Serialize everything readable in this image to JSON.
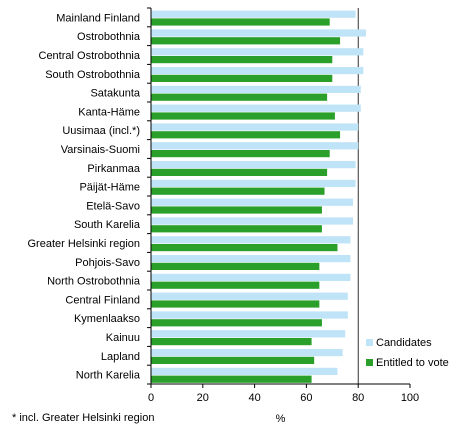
{
  "chart_data": {
    "type": "bar",
    "orientation": "horizontal",
    "categories": [
      "Mainland Finland",
      "Ostrobothnia",
      "Central Ostrobothnia",
      "South Ostrobothnia",
      "Satakunta",
      "Kanta-Häme",
      "Uusimaa (incl.*)",
      "Varsinais-Suomi",
      "Pirkanmaa",
      "Päijät-Häme",
      "Etelä-Savo",
      "South Karelia",
      "Greater Helsinki region",
      "Pohjois-Savo",
      "North Ostrobothnia",
      "Central Finland",
      "Kymenlaakso",
      "Kainuu",
      "Lapland",
      "North Karelia"
    ],
    "series": [
      {
        "name": "Candidates",
        "color": "#bfe3f7",
        "values": [
          79,
          83,
          82,
          82,
          81,
          81,
          80,
          80,
          79,
          79,
          78,
          78,
          77,
          77,
          77,
          76,
          76,
          75,
          74,
          72
        ]
      },
      {
        "name": "Entitled to vote",
        "color": "#2aa02a",
        "values": [
          69,
          73,
          70,
          70,
          68,
          71,
          73,
          69,
          68,
          67,
          66,
          66,
          72,
          65,
          65,
          65,
          66,
          62,
          63,
          62
        ]
      }
    ],
    "xlim": [
      0,
      100
    ],
    "xticks": [
      "0",
      "20",
      "40",
      "60",
      "80",
      "100"
    ],
    "xlabel": "%",
    "grid": "vertical at 80",
    "legend_position": "right",
    "footnote": "* incl. Greater Helsinki region"
  }
}
